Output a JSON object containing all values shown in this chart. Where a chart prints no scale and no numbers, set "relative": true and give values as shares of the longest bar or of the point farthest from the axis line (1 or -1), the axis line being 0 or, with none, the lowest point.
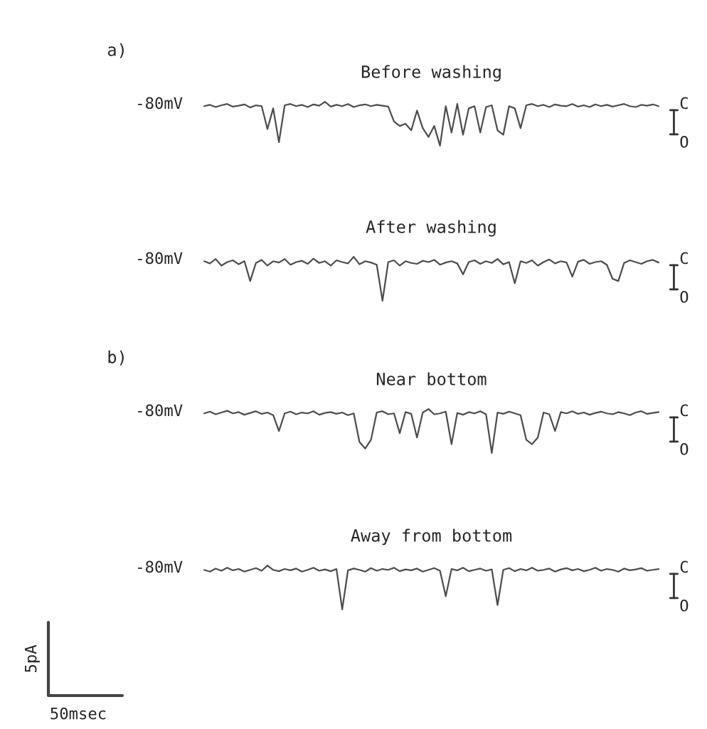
{
  "chart_data": [
    {
      "type": "line",
      "title": "Before washing",
      "relative": true,
      "color": "#4d4d4d",
      "annotations": [
        "-80mV",
        "C",
        "O",
        "a)"
      ],
      "categories": [
        null,
        null,
        null,
        null,
        null,
        null,
        null,
        null,
        null,
        null,
        null,
        null,
        null,
        null,
        null,
        null,
        null,
        null,
        null,
        null,
        null,
        null,
        null,
        null,
        null,
        null,
        null,
        null,
        null,
        null,
        null,
        null,
        null,
        null,
        null,
        null,
        null,
        null,
        null,
        null,
        null,
        null,
        null,
        null,
        null,
        null,
        null,
        null,
        null,
        null,
        null,
        null,
        null,
        null,
        null,
        null,
        null,
        null,
        null,
        null,
        null,
        null,
        null,
        null,
        null,
        null,
        null,
        null,
        null,
        null,
        null,
        null,
        null,
        null,
        null,
        null,
        null,
        null,
        null,
        null
      ],
      "values": [
        0.9,
        0.93,
        0.88,
        0.92,
        0.95,
        0.89,
        0.91,
        0.94,
        0.87,
        0.92,
        0.9,
        0.38,
        0.85,
        0.08,
        0.92,
        0.95,
        0.9,
        0.93,
        0.88,
        0.94,
        0.91,
        1.0,
        0.89,
        0.93,
        0.9,
        0.95,
        0.88,
        0.92,
        0.94,
        0.9,
        0.93,
        0.91,
        0.89,
        0.55,
        0.45,
        0.5,
        0.35,
        0.8,
        0.4,
        0.2,
        0.45,
        0.0,
        0.9,
        0.3,
        0.95,
        0.25,
        0.85,
        0.9,
        0.3,
        0.88,
        0.92,
        0.35,
        0.25,
        0.9,
        0.85,
        0.4,
        0.92,
        0.95,
        0.9,
        0.93,
        0.88,
        0.94,
        0.91,
        0.9,
        0.95,
        0.89,
        0.92,
        0.88,
        0.94,
        0.9,
        0.93,
        0.89,
        0.92,
        0.95,
        0.9,
        0.88,
        0.93,
        0.91,
        0.94,
        0.9
      ]
    },
    {
      "type": "line",
      "title": "After washing",
      "relative": true,
      "color": "#4d4d4d",
      "annotations": [
        "-80mV",
        "C",
        "O"
      ],
      "categories": [
        null,
        null,
        null,
        null,
        null,
        null,
        null,
        null,
        null,
        null,
        null,
        null,
        null,
        null,
        null,
        null,
        null,
        null,
        null,
        null,
        null,
        null,
        null,
        null,
        null,
        null,
        null,
        null,
        null,
        null,
        null,
        null,
        null,
        null,
        null,
        null,
        null,
        null,
        null,
        null,
        null,
        null,
        null,
        null,
        null,
        null,
        null,
        null,
        null,
        null,
        null,
        null,
        null,
        null,
        null,
        null,
        null,
        null,
        null,
        null,
        null,
        null,
        null,
        null,
        null,
        null,
        null,
        null,
        null,
        null,
        null,
        null,
        null,
        null,
        null,
        null,
        null,
        null,
        null,
        null
      ],
      "values": [
        0.9,
        0.85,
        0.95,
        0.8,
        0.88,
        0.92,
        0.83,
        0.9,
        0.45,
        0.86,
        0.93,
        0.8,
        0.9,
        0.87,
        0.95,
        0.82,
        0.88,
        0.91,
        0.84,
        0.96,
        0.86,
        0.9,
        0.8,
        0.92,
        0.88,
        0.85,
        1.0,
        0.83,
        0.9,
        0.87,
        0.82,
        0.0,
        0.88,
        0.92,
        0.8,
        0.9,
        0.86,
        0.84,
        0.91,
        0.88,
        0.93,
        0.82,
        0.87,
        0.9,
        0.85,
        0.6,
        0.88,
        0.92,
        0.84,
        0.9,
        0.86,
        0.95,
        0.83,
        0.88,
        0.4,
        0.9,
        0.86,
        0.92,
        0.8,
        0.88,
        0.94,
        0.85,
        0.9,
        0.87,
        0.55,
        0.89,
        0.93,
        0.84,
        0.88,
        0.9,
        0.82,
        0.5,
        0.45,
        0.86,
        0.92,
        0.88,
        0.84,
        0.9,
        0.93,
        0.87
      ]
    },
    {
      "type": "line",
      "title": "Near bottom",
      "relative": true,
      "color": "#4d4d4d",
      "annotations": [
        "-80mV",
        "C",
        "O",
        "b)"
      ],
      "categories": [
        null,
        null,
        null,
        null,
        null,
        null,
        null,
        null,
        null,
        null,
        null,
        null,
        null,
        null,
        null,
        null,
        null,
        null,
        null,
        null,
        null,
        null,
        null,
        null,
        null,
        null,
        null,
        null,
        null,
        null,
        null,
        null,
        null,
        null,
        null,
        null,
        null,
        null,
        null,
        null,
        null,
        null,
        null,
        null,
        null,
        null,
        null,
        null,
        null,
        null,
        null,
        null,
        null,
        null,
        null,
        null,
        null,
        null,
        null,
        null,
        null,
        null,
        null,
        null,
        null,
        null,
        null,
        null,
        null,
        null,
        null,
        null,
        null,
        null,
        null,
        null,
        null,
        null,
        null,
        null
      ],
      "values": [
        0.9,
        0.94,
        0.88,
        0.92,
        0.96,
        0.9,
        0.93,
        0.87,
        0.91,
        0.95,
        0.89,
        0.92,
        0.86,
        0.5,
        0.9,
        0.94,
        0.88,
        0.92,
        0.9,
        0.95,
        0.87,
        0.91,
        0.93,
        0.89,
        0.92,
        0.86,
        0.9,
        0.25,
        0.1,
        0.3,
        0.92,
        0.95,
        0.88,
        0.9,
        0.45,
        0.93,
        0.89,
        0.35,
        0.92,
        1.0,
        0.88,
        0.9,
        0.94,
        0.2,
        0.91,
        0.87,
        0.93,
        0.9,
        0.95,
        0.88,
        0.0,
        0.92,
        0.89,
        0.94,
        0.9,
        0.86,
        0.3,
        0.2,
        0.35,
        0.92,
        0.88,
        0.5,
        0.93,
        0.9,
        0.95,
        0.89,
        0.92,
        0.87,
        0.91,
        0.94,
        0.9,
        0.88,
        0.93,
        0.9,
        0.86,
        0.92,
        0.95,
        0.89,
        0.91,
        0.93
      ]
    },
    {
      "type": "line",
      "title": "Away from bottom",
      "relative": true,
      "color": "#4d4d4d",
      "annotations": [
        "-80mV",
        "C",
        "O",
        "5pA",
        "50msec"
      ],
      "categories": [
        null,
        null,
        null,
        null,
        null,
        null,
        null,
        null,
        null,
        null,
        null,
        null,
        null,
        null,
        null,
        null,
        null,
        null,
        null,
        null,
        null,
        null,
        null,
        null,
        null,
        null,
        null,
        null,
        null,
        null,
        null,
        null,
        null,
        null,
        null,
        null,
        null,
        null,
        null,
        null,
        null,
        null,
        null,
        null,
        null,
        null,
        null,
        null,
        null,
        null,
        null,
        null,
        null,
        null,
        null,
        null,
        null,
        null,
        null,
        null,
        null,
        null,
        null,
        null,
        null,
        null,
        null,
        null,
        null,
        null,
        null,
        null,
        null,
        null,
        null,
        null,
        null,
        null,
        null,
        null
      ],
      "values": [
        0.9,
        0.86,
        0.93,
        0.88,
        0.95,
        0.89,
        0.92,
        0.86,
        0.9,
        0.94,
        0.88,
        1.0,
        0.9,
        0.87,
        0.92,
        0.89,
        0.93,
        0.86,
        0.9,
        0.95,
        0.88,
        0.91,
        0.87,
        0.92,
        0.0,
        0.89,
        0.93,
        0.9,
        0.86,
        0.94,
        0.88,
        0.92,
        0.9,
        0.95,
        0.87,
        0.91,
        0.89,
        0.93,
        0.86,
        0.9,
        0.94,
        0.88,
        0.3,
        0.92,
        0.89,
        0.95,
        0.87,
        0.9,
        0.93,
        0.88,
        0.91,
        0.1,
        0.9,
        0.94,
        0.87,
        0.92,
        0.89,
        0.95,
        0.88,
        0.9,
        0.93,
        0.86,
        0.91,
        0.94,
        0.89,
        0.92,
        0.87,
        0.9,
        0.95,
        0.88,
        0.92,
        0.9,
        0.86,
        0.93,
        0.89,
        0.91,
        0.94,
        0.88,
        0.9,
        0.92
      ]
    }
  ]
}
